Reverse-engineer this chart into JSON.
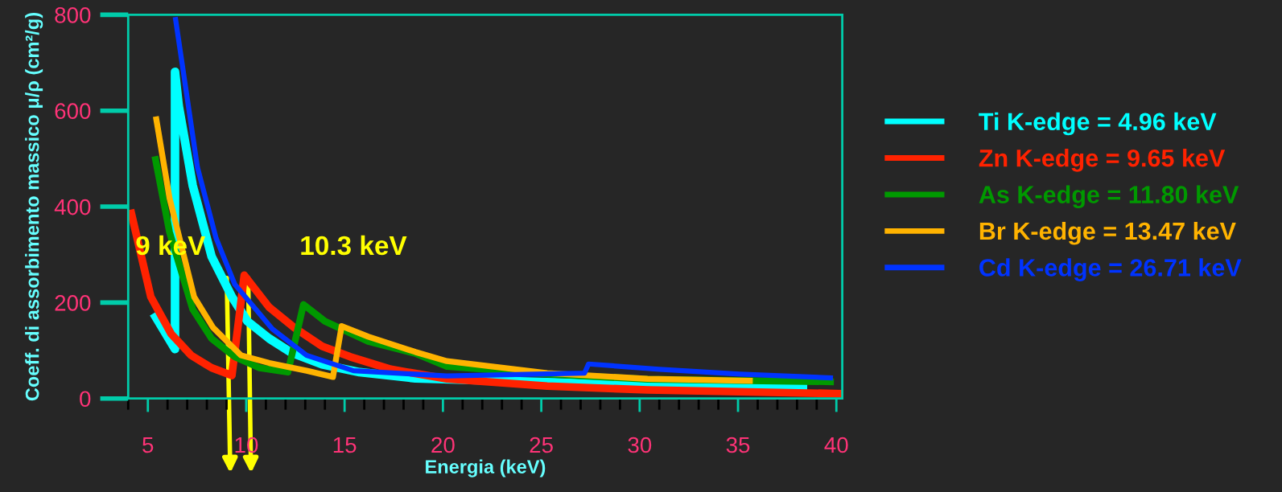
{
  "chart_data": {
    "type": "line",
    "xlabel": "Energia (keV)",
    "ylabel": "Coeff. di assorbimento massico μ/ρ (cm²/g)",
    "xlim": [
      4,
      40.3
    ],
    "ylim": [
      0,
      800
    ],
    "xticks": [
      5,
      10,
      15,
      20,
      25,
      30,
      35,
      40
    ],
    "yticks": [
      0,
      200,
      400,
      600,
      800
    ],
    "grid": false,
    "legend": "right",
    "marker": "none",
    "line_style": "solid",
    "series": [
      {
        "name": "Ti K-edge = 4.96 keV",
        "color": "#00ffff",
        "x": [
          5.4,
          6.38,
          6.38,
          6.57,
          7.28,
          8.24,
          9.27,
          10.06,
          11.17,
          12.28,
          13.86,
          15.76,
          18.6,
          25.3,
          30.4,
          38.3
        ],
        "values": [
          170,
          103,
          681,
          610,
          444,
          296,
          212,
          161,
          125,
          96,
          71,
          55,
          42,
          34,
          28,
          26
        ]
      },
      {
        "name": "Zn K-edge = 9.65 keV",
        "color": "#ff2200",
        "x": [
          4.16,
          5.15,
          6.18,
          7.2,
          8.24,
          9.27,
          9.9,
          11.17,
          12.44,
          13.86,
          15.29,
          17.35,
          20.2,
          25.3,
          30.4,
          40.3
        ],
        "values": [
          386,
          212,
          135,
          90,
          64,
          48,
          257,
          190,
          148,
          109,
          87,
          61,
          41,
          26,
          18,
          10
        ]
      },
      {
        "name": "As K-edge = 11.80 keV",
        "color": "#009900",
        "x": [
          5.39,
          6.1,
          7.28,
          8.24,
          9.42,
          10.68,
          12.12,
          12.91,
          14.0,
          16.2,
          18.6,
          20.2,
          25.3,
          30.4,
          39.7
        ],
        "values": [
          498,
          347,
          186,
          125,
          87,
          64,
          55,
          196,
          161,
          119,
          94,
          67,
          51,
          40,
          35
        ]
      },
      {
        "name": "Br K-edge = 13.47 keV",
        "color": "#ffb300",
        "x": [
          5.43,
          6.1,
          7.35,
          8.31,
          9.74,
          11.17,
          13.07,
          14.41,
          14.85,
          16.2,
          18.6,
          20.2,
          25.3,
          30.4,
          35.6
        ],
        "values": [
          582,
          418,
          212,
          148,
          90,
          74,
          58,
          45,
          151,
          129,
          97,
          78,
          53,
          41,
          37
        ]
      },
      {
        "name": "Cd K-edge = 26.71 keV",
        "color": "#0033ff",
        "x": [
          6.41,
          7.52,
          8.47,
          9.42,
          11.33,
          13.07,
          15.45,
          20.2,
          27.2,
          27.4,
          31.0,
          35.1,
          39.7
        ],
        "values": [
          790,
          482,
          334,
          238,
          145,
          90,
          58,
          47,
          53,
          72,
          61,
          51,
          43
        ]
      }
    ],
    "annotations": [
      "9 keV",
      "10.3 keV"
    ]
  }
}
